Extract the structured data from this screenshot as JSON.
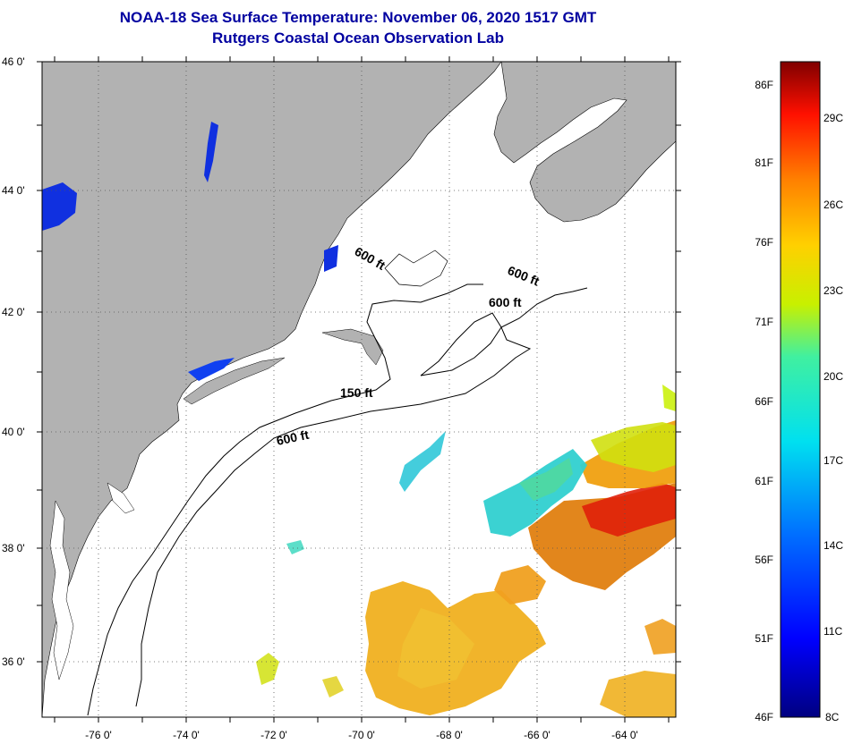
{
  "header": {
    "title": "NOAA-18 Sea Surface Temperature:  November 06, 2020 1517 GMT",
    "subtitle": "Rutgers Coastal Ocean Observation Lab"
  },
  "axes": {
    "lat_labels": [
      "46 0'",
      "44 0'",
      "42 0'",
      "40 0'",
      "38 0'",
      "36 0'"
    ],
    "lon_labels": [
      "-76 0'",
      "-74 0'",
      "-72 0'",
      "-70 0'",
      "-68 0'",
      "-66 0'",
      "-64 0'"
    ]
  },
  "contours": [
    "600 ft",
    "600 ft",
    "600 ft",
    "150 ft",
    "600 ft"
  ],
  "colorbar": {
    "fahrenheit": [
      "86F",
      "81F",
      "76F",
      "71F",
      "66F",
      "61F",
      "56F",
      "51F",
      "46F"
    ],
    "celsius": [
      "29C",
      "26C",
      "23C",
      "20C",
      "17C",
      "14C",
      "11C",
      "8C"
    ]
  },
  "colors": {
    "land": "#b2b2b2",
    "ocean": "#ffffff",
    "title": "#0000a0"
  }
}
